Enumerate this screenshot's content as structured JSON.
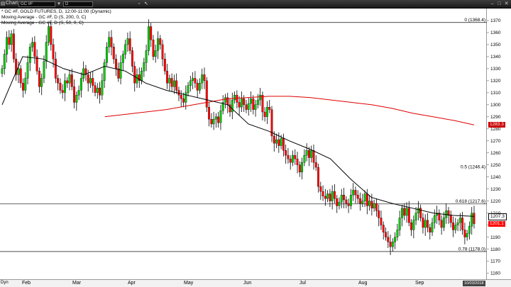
{
  "window": {
    "title": "Chart",
    "symbol": "GC #F",
    "interval": "D",
    "icons": [
      "chart-icon",
      "dropdown-icon",
      "lock-icon",
      "cursor-icon",
      "minimize-icon",
      "maximize-icon",
      "close-icon"
    ]
  },
  "legend": {
    "line1": "* GC #F, GOLD FUTURES, D, 12:00-11:00 (Dynamic)",
    "line2": "Moving Average - GC #F, D (S, 200, 0, C)",
    "line3": "Moving Average - GC #F, D (S, 50, 0, C)"
  },
  "colors": {
    "up": "#00cc00",
    "down": "#ff0000",
    "ma50": "#000000",
    "ma200": "#dd0000",
    "background": "#ffffff",
    "last_price_tag": "#ff0000",
    "ma200_tag": "#cc0000"
  },
  "time_axis": {
    "months": [
      "Feb",
      "Mar",
      "Apr",
      "May",
      "Jun",
      "Jul",
      "Aug",
      "Sep"
    ],
    "left_label": "Dyn",
    "right_date": "10/03/2018"
  },
  "chart_data": {
    "type": "candlestick",
    "ylim": [
      1155,
      1380
    ],
    "yticks": [
      1160,
      1170,
      1180,
      1190,
      1200,
      1210,
      1220,
      1230,
      1240,
      1250,
      1260,
      1270,
      1280,
      1290,
      1300,
      1310,
      1320,
      1330,
      1340,
      1350,
      1360,
      1370
    ],
    "fib_levels": [
      {
        "label": "0 (1368.4)",
        "value": 1368.4,
        "line": true
      },
      {
        "label": "0.5 (1246.4)",
        "value": 1246.4,
        "line": false
      },
      {
        "label": "0.618 (1217.6)",
        "value": 1217.6,
        "line": true
      },
      {
        "label": "0.78 (1178.0)",
        "value": 1178.0,
        "line": true
      }
    ],
    "tags": [
      {
        "value": 1283.3,
        "text": "1283.3",
        "kind": "ma200"
      },
      {
        "value": 1207.3,
        "text": "1207.3",
        "kind": "ma50"
      },
      {
        "value": 1201.1,
        "text": "1201.1",
        "kind": "last"
      }
    ],
    "close": [
      1330,
      1342,
      1356,
      1350,
      1359,
      1338,
      1325,
      1330,
      1318,
      1312,
      1322,
      1335,
      1348,
      1352,
      1340,
      1328,
      1315,
      1322,
      1336,
      1352,
      1365,
      1350,
      1338,
      1322,
      1318,
      1312,
      1310,
      1320,
      1318,
      1325,
      1315,
      1302,
      1308,
      1312,
      1322,
      1330,
      1325,
      1318,
      1322,
      1316,
      1310,
      1314,
      1308,
      1320,
      1335,
      1348,
      1356,
      1348,
      1338,
      1330,
      1322,
      1335,
      1342,
      1350,
      1355,
      1345,
      1332,
      1318,
      1325,
      1320,
      1328,
      1335,
      1345,
      1365,
      1354,
      1340,
      1345,
      1355,
      1350,
      1338,
      1328,
      1318,
      1322,
      1315,
      1320,
      1312,
      1308,
      1305,
      1302,
      1310,
      1316,
      1320,
      1322,
      1318,
      1312,
      1318,
      1325,
      1320,
      1298,
      1288,
      1284,
      1288,
      1290,
      1285,
      1295,
      1302,
      1306,
      1300,
      1294,
      1304,
      1308,
      1302,
      1298,
      1305,
      1300,
      1296,
      1301,
      1305,
      1296,
      1300,
      1304,
      1308,
      1294,
      1290,
      1298,
      1296,
      1274,
      1268,
      1271,
      1266,
      1272,
      1262,
      1258,
      1255,
      1252,
      1258,
      1255,
      1250,
      1244,
      1252,
      1258,
      1262,
      1256,
      1262,
      1252,
      1248,
      1232,
      1228,
      1224,
      1222,
      1226,
      1220,
      1228,
      1222,
      1216,
      1219,
      1225,
      1221,
      1218,
      1216,
      1225,
      1229,
      1225,
      1222,
      1218,
      1220,
      1226,
      1216,
      1220,
      1214,
      1218,
      1212,
      1206,
      1200,
      1194,
      1190,
      1186,
      1182,
      1186,
      1190,
      1196,
      1206,
      1214,
      1208,
      1214,
      1202,
      1196,
      1204,
      1210,
      1214,
      1206,
      1198,
      1204,
      1198,
      1194,
      1202,
      1208,
      1210,
      1204,
      1198,
      1206,
      1212,
      1208,
      1202,
      1196,
      1200,
      1202,
      1206,
      1196,
      1190,
      1193,
      1199,
      1210,
      1201.1
    ],
    "ma50": [
      1300,
      1340,
      1338,
      1330,
      1325,
      1332,
      1328,
      1318,
      1312,
      1308,
      1304,
      1300,
      1284,
      1278,
      1270,
      1263,
      1255,
      1238,
      1223,
      1218,
      1214,
      1210,
      1208,
      1207.3
    ],
    "ma200": [
      null,
      null,
      null,
      null,
      null,
      1290,
      1292,
      1294,
      1296,
      1299,
      1302,
      1305,
      1306,
      1307,
      1307,
      1306,
      1304,
      1302,
      1300,
      1297,
      1293,
      1290,
      1287,
      1283.3
    ]
  }
}
